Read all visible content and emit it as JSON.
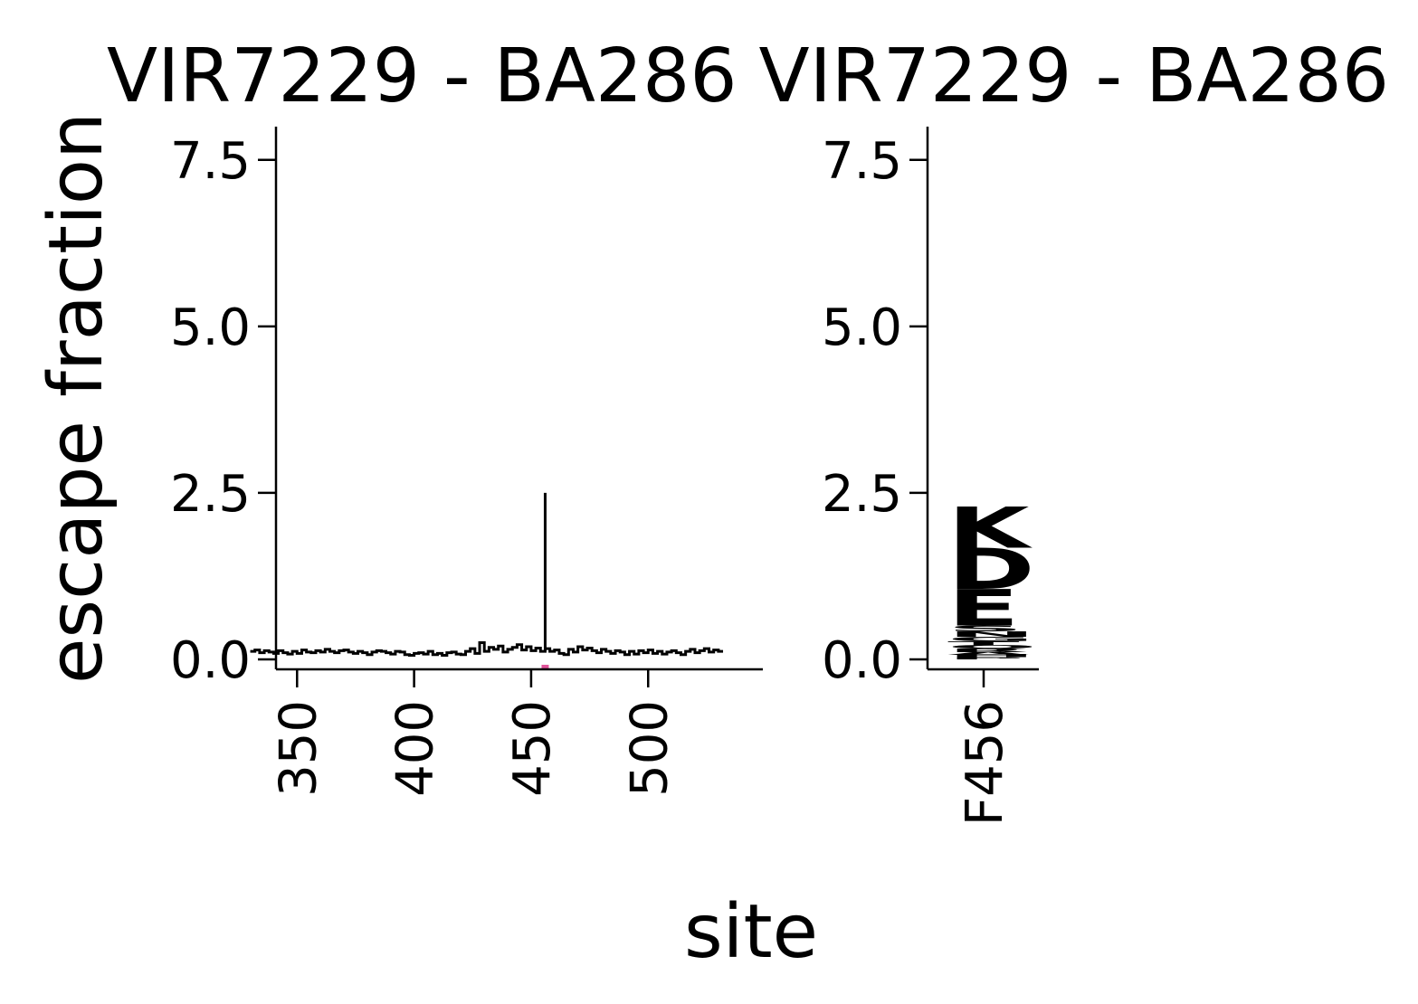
{
  "chart_data": [
    {
      "type": "line",
      "panel": "site-escape-profile",
      "title": "VIR7229 - BA286",
      "xlabel": "site",
      "ylabel": "escape fraction",
      "xlim": [
        341,
        549
      ],
      "ylim": [
        -0.15,
        8.0
      ],
      "xticks": [
        350,
        400,
        450,
        500
      ],
      "yticks": [
        0.0,
        2.5,
        5.0,
        7.5
      ],
      "ytick_labels": [
        "0.0",
        "2.5",
        "5.0",
        "7.5"
      ],
      "grid": false,
      "line_color": "#000000",
      "highlight_site": 456,
      "highlight_color": "#e0549a",
      "series": [
        {
          "x": [
            331,
            333,
            335,
            337,
            339,
            341,
            343,
            345,
            347,
            349,
            351,
            353,
            355,
            357,
            359,
            361,
            363,
            365,
            367,
            369,
            371,
            373,
            375,
            377,
            379,
            381,
            383,
            385,
            387,
            389,
            391,
            393,
            395,
            397,
            399,
            401,
            403,
            405,
            407,
            409,
            411,
            413,
            415,
            417,
            419,
            421,
            423,
            425,
            427,
            429,
            431,
            433,
            435,
            437,
            439,
            441,
            443,
            445,
            447,
            449,
            451,
            453,
            455,
            456,
            457,
            459,
            461,
            463,
            465,
            467,
            469,
            471,
            473,
            475,
            477,
            479,
            481,
            483,
            485,
            487,
            489,
            491,
            493,
            495,
            497,
            499,
            501,
            503,
            505,
            507,
            509,
            511,
            513,
            515,
            517,
            519,
            521,
            523,
            525,
            527,
            529,
            531
          ],
          "y": [
            0.12,
            0.14,
            0.1,
            0.13,
            0.11,
            0.09,
            0.13,
            0.1,
            0.08,
            0.12,
            0.09,
            0.14,
            0.11,
            0.1,
            0.13,
            0.11,
            0.15,
            0.12,
            0.1,
            0.13,
            0.14,
            0.11,
            0.09,
            0.12,
            0.1,
            0.07,
            0.11,
            0.13,
            0.12,
            0.1,
            0.08,
            0.12,
            0.11,
            0.07,
            0.06,
            0.09,
            0.1,
            0.08,
            0.12,
            0.07,
            0.09,
            0.06,
            0.1,
            0.11,
            0.08,
            0.07,
            0.12,
            0.16,
            0.09,
            0.25,
            0.12,
            0.18,
            0.15,
            0.2,
            0.11,
            0.15,
            0.18,
            0.22,
            0.14,
            0.19,
            0.13,
            0.17,
            0.12,
            2.5,
            0.16,
            0.12,
            0.14,
            0.09,
            0.07,
            0.15,
            0.11,
            0.19,
            0.14,
            0.17,
            0.13,
            0.1,
            0.15,
            0.12,
            0.09,
            0.13,
            0.11,
            0.07,
            0.12,
            0.08,
            0.13,
            0.1,
            0.14,
            0.09,
            0.12,
            0.08,
            0.11,
            0.13,
            0.1,
            0.07,
            0.12,
            0.15,
            0.1,
            0.13,
            0.16,
            0.11,
            0.14,
            0.12
          ]
        }
      ]
    },
    {
      "type": "logo",
      "panel": "mutation-logo",
      "title": "VIR7229 - BA286",
      "site_label": "F456",
      "xticks": [
        "F456"
      ],
      "ylim": [
        -0.15,
        8.0
      ],
      "yticks": [
        0.0,
        2.5,
        5.0,
        7.5
      ],
      "ytick_labels": [
        "0.0",
        "2.5",
        "5.0",
        "7.5"
      ],
      "letter_color": "#e0359a",
      "letters": [
        {
          "aa": "K",
          "height": 0.62
        },
        {
          "aa": "D",
          "height": 0.62
        },
        {
          "aa": "E",
          "height": 0.55
        },
        {
          "aa": "S",
          "height": 0.09
        },
        {
          "aa": "N",
          "height": 0.08
        },
        {
          "aa": "G",
          "height": 0.07
        },
        {
          "aa": "T",
          "height": 0.06
        },
        {
          "aa": "Q",
          "height": 0.05
        },
        {
          "aa": "R",
          "height": 0.05
        },
        {
          "aa": "A",
          "height": 0.04
        },
        {
          "aa": "H",
          "height": 0.04
        },
        {
          "aa": "P",
          "height": 0.03
        }
      ]
    }
  ]
}
